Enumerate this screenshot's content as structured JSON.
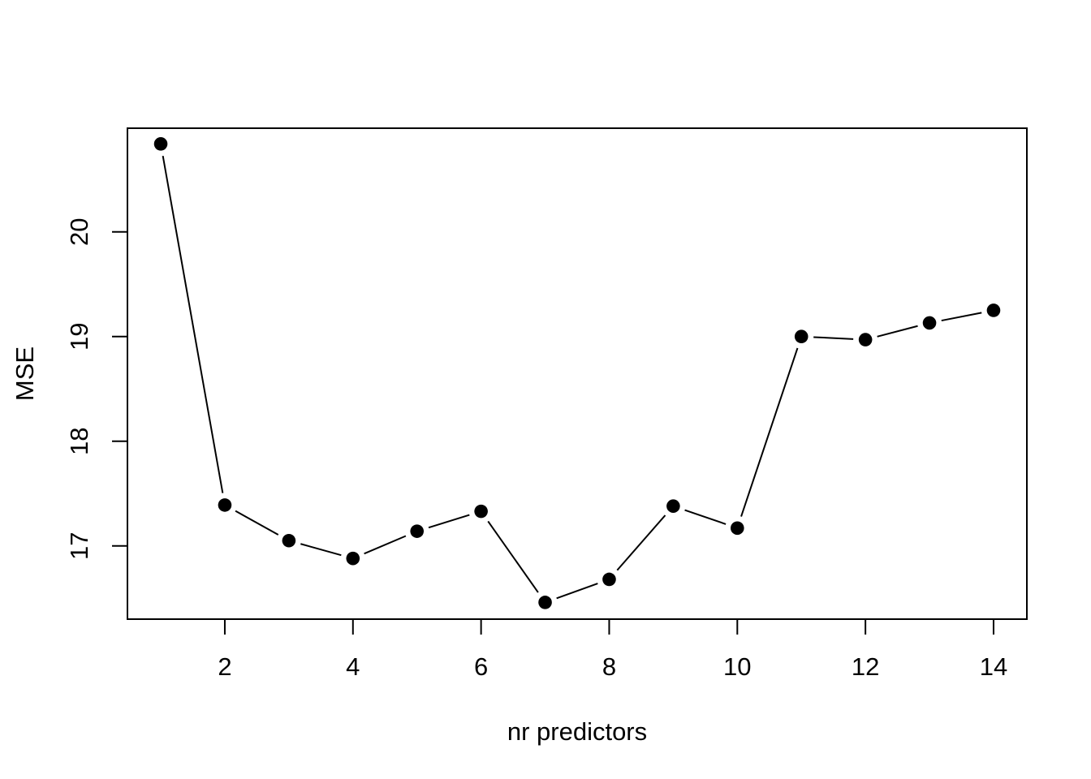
{
  "chart_data": {
    "type": "line",
    "title": "",
    "xlabel": "nr predictors",
    "ylabel": "MSE",
    "x": [
      1,
      2,
      3,
      4,
      5,
      6,
      7,
      8,
      9,
      10,
      11,
      12,
      13,
      14
    ],
    "values": [
      20.84,
      17.39,
      17.05,
      16.88,
      17.14,
      17.33,
      16.46,
      16.68,
      17.38,
      17.17,
      19.0,
      18.97,
      19.13,
      19.25
    ],
    "series_name": "MSE",
    "x_ticks": [
      2,
      4,
      6,
      8,
      10,
      12,
      14
    ],
    "y_ticks": [
      17,
      18,
      19,
      20
    ],
    "xlim": [
      0.48,
      14.52
    ],
    "ylim": [
      16.3,
      20.99
    ],
    "marker": "filled-circle",
    "line_style": "segments-with-gaps-at-points",
    "grid": false,
    "legend_position": "none",
    "color": "#000000",
    "background": "#ffffff"
  }
}
